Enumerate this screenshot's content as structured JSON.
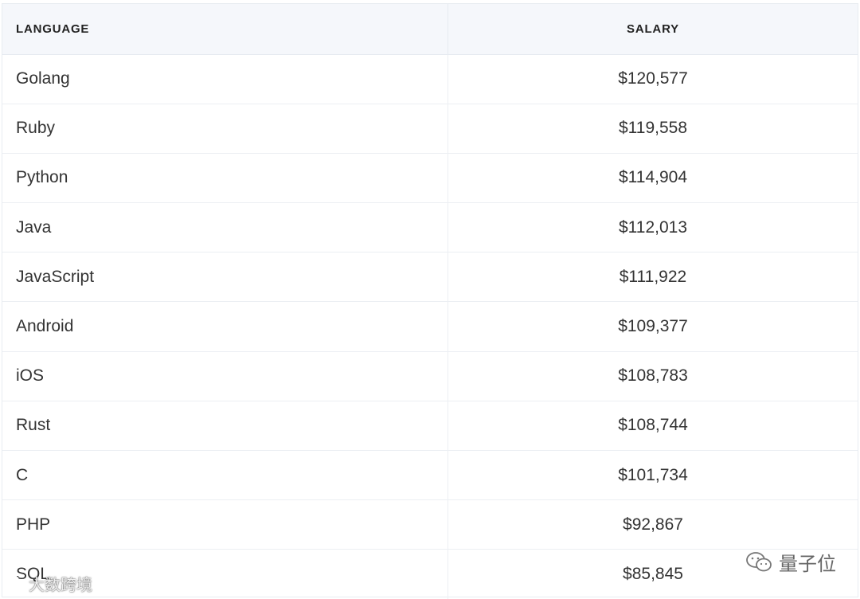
{
  "table": {
    "headers": {
      "language": "LANGUAGE",
      "salary": "SALARY"
    },
    "rows": [
      {
        "language": "Golang",
        "salary": "$120,577"
      },
      {
        "language": "Ruby",
        "salary": "$119,558"
      },
      {
        "language": "Python",
        "salary": "$114,904"
      },
      {
        "language": "Java",
        "salary": "$112,013"
      },
      {
        "language": "JavaScript",
        "salary": "$111,922"
      },
      {
        "language": "Android",
        "salary": "$109,377"
      },
      {
        "language": "iOS",
        "salary": "$108,783"
      },
      {
        "language": "Rust",
        "salary": "$108,744"
      },
      {
        "language": "C",
        "salary": "$101,734"
      },
      {
        "language": "PHP",
        "salary": "$92,867"
      },
      {
        "language": "SQL",
        "salary": "$85,845"
      }
    ]
  },
  "watermarks": {
    "left_text": "大数跨境",
    "right_text": "量子位"
  }
}
